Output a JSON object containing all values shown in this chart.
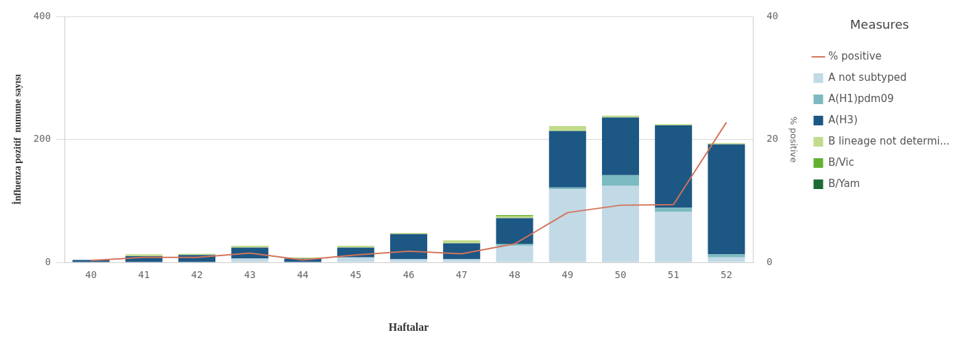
{
  "chart_data": {
    "type": "bar",
    "stacked": true,
    "xlabel": "Haftalar",
    "ylabel": "İnfluenza pozitif  numune sayısı",
    "y2label": "% positive",
    "legend_title": "Measures",
    "legend": "right",
    "grid": "y",
    "categories": [
      "40",
      "41",
      "42",
      "43",
      "44",
      "45",
      "46",
      "47",
      "48",
      "49",
      "50",
      "51",
      "52"
    ],
    "ylim": [
      0,
      400
    ],
    "yticks": [
      0,
      200,
      400
    ],
    "y2lim": [
      0,
      40
    ],
    "y2ticks": [
      0,
      20,
      40
    ],
    "series": [
      {
        "name": "% positive",
        "type": "line",
        "axis": "y2",
        "color": "#d3735a",
        "marker": "none",
        "values": [
          0.3,
          0.8,
          0.8,
          1.5,
          0.4,
          1.2,
          1.8,
          1.4,
          3.0,
          8.1,
          9.3,
          9.4,
          22.8
        ]
      },
      {
        "name": "A not subtyped",
        "color": "#c2d9e6",
        "values": [
          0,
          null,
          0,
          6,
          null,
          8,
          5,
          5,
          27,
          119,
          125,
          82,
          8
        ]
      },
      {
        "name": "A(H1)pdm09",
        "color": "#7cbac1",
        "values": [
          0,
          0,
          0,
          0,
          0,
          0,
          0,
          0,
          3,
          3,
          17,
          7,
          5
        ]
      },
      {
        "name": "A(H3)",
        "color": "#1d5784",
        "values": [
          4,
          10,
          12,
          18,
          6,
          16,
          41,
          26,
          42,
          92,
          94,
          134,
          179
        ]
      },
      {
        "name": "B lineage not determi...",
        "color": "#c1dc8c",
        "values": [
          null,
          3,
          2,
          3,
          2,
          3,
          2,
          5,
          3,
          8,
          3,
          2,
          2
        ]
      },
      {
        "name": "B/Vic",
        "color": "#62b22f",
        "values": [
          0,
          0,
          0,
          0,
          0,
          0,
          0,
          0,
          2,
          0,
          0,
          0,
          0
        ]
      },
      {
        "name": "B/Yam",
        "color": "#1a6b35",
        "values": [
          0,
          0,
          0,
          0,
          0,
          0,
          0,
          0,
          0,
          0,
          0,
          0,
          0
        ]
      }
    ]
  }
}
